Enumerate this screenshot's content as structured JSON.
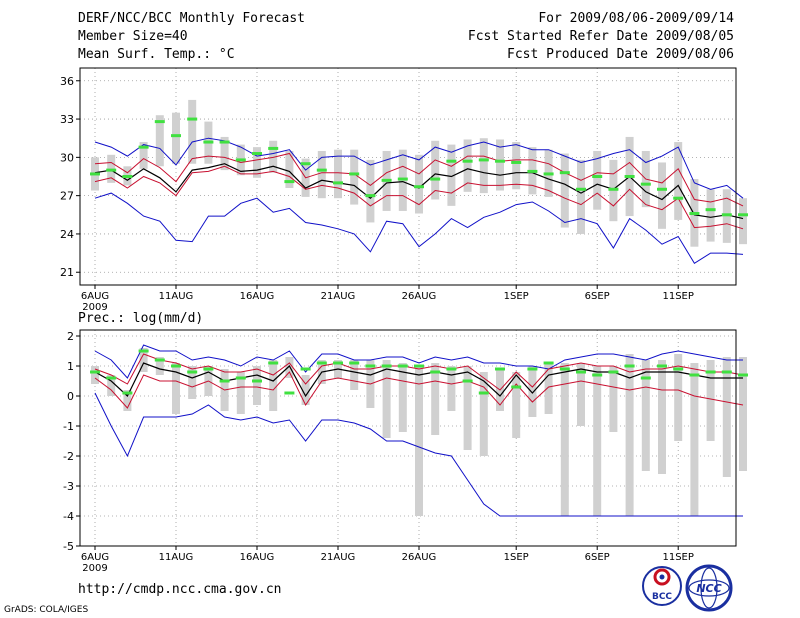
{
  "header": {
    "title": "DERF/NCC/BCC Monthly Forecast",
    "member_size": "Member Size=40",
    "variable": "Mean Surf. Temp.: °C",
    "fcst_period": "For 2009/08/06-2009/09/14",
    "fcst_started": "Fcst Started Refer Date 2009/08/05",
    "fcst_produced": "Fcst Produced Date 2009/08/06"
  },
  "footer": {
    "url": "http://cmdp.ncc.cma.gov.cn",
    "credit": "GrADS: COLA/IGES",
    "logo_left": "BCC",
    "logo_right": "NCC"
  },
  "colors": {
    "bar": "#d0d0d0",
    "median": "#40e040",
    "spread": "#1010c8",
    "quartile": "#c81030",
    "mean": "#000000"
  },
  "chart_data": [
    {
      "type": "line",
      "title": "Mean Surf. Temp.: °C",
      "ylim": [
        20,
        37
      ],
      "yticks": [
        21,
        24,
        27,
        30,
        33,
        36
      ],
      "xticks": [
        {
          "day": 0,
          "label": "6AUG",
          "sublabel": "2009"
        },
        {
          "day": 5,
          "label": "11AUG"
        },
        {
          "day": 10,
          "label": "16AUG"
        },
        {
          "day": 15,
          "label": "21AUG"
        },
        {
          "day": 20,
          "label": "26AUG"
        },
        {
          "day": 26,
          "label": "1SEP"
        },
        {
          "day": 31,
          "label": "6SEP"
        },
        {
          "day": 36,
          "label": "11SEP"
        }
      ],
      "series": [
        {
          "name": "ensemble-max",
          "values": [
            31.2,
            30.8,
            30.1,
            31.0,
            30.7,
            29.4,
            31.2,
            31.5,
            31.3,
            30.8,
            30.1,
            30.3,
            30.6,
            29.0,
            30.0,
            30.1,
            30.1,
            29.4,
            29.8,
            30.2,
            29.8,
            30.8,
            30.4,
            30.9,
            31.2,
            30.8,
            31.0,
            30.6,
            30.6,
            30.1,
            29.6,
            29.9,
            30.3,
            30.6,
            29.6,
            30.1,
            30.8,
            28.0,
            27.5,
            27.8,
            26.8
          ]
        },
        {
          "name": "upper-quartile",
          "values": [
            29.5,
            29.6,
            28.8,
            29.9,
            29.2,
            28.1,
            29.9,
            30.1,
            30.0,
            29.6,
            29.8,
            30.0,
            30.3,
            28.4,
            28.8,
            28.8,
            28.7,
            27.8,
            28.8,
            29.3,
            28.7,
            29.8,
            29.3,
            30.1,
            30.1,
            29.7,
            29.8,
            29.8,
            29.5,
            28.8,
            28.2,
            28.8,
            28.7,
            29.6,
            28.3,
            28.0,
            29.1,
            26.7,
            26.5,
            26.8,
            26.2
          ]
        },
        {
          "name": "mean",
          "values": [
            28.8,
            29.0,
            28.2,
            29.1,
            28.4,
            27.3,
            29.0,
            29.2,
            29.5,
            28.9,
            29.0,
            29.3,
            28.9,
            27.6,
            28.2,
            28.0,
            27.8,
            26.8,
            28.0,
            28.1,
            27.6,
            28.7,
            28.5,
            29.1,
            28.8,
            28.6,
            28.8,
            28.8,
            28.3,
            27.9,
            27.2,
            27.9,
            27.5,
            28.5,
            27.3,
            26.7,
            27.8,
            25.5,
            25.3,
            25.5,
            25.2
          ]
        },
        {
          "name": "lower-quartile",
          "values": [
            28.1,
            28.4,
            27.6,
            28.5,
            28.0,
            27.0,
            28.8,
            28.9,
            29.3,
            28.7,
            28.7,
            28.9,
            28.5,
            27.5,
            27.8,
            27.6,
            27.2,
            26.2,
            27.0,
            27.0,
            26.3,
            27.4,
            27.2,
            28.0,
            27.8,
            27.8,
            27.9,
            27.8,
            27.4,
            26.8,
            26.3,
            27.2,
            26.2,
            27.5,
            26.3,
            25.9,
            26.8,
            24.5,
            24.6,
            24.8,
            24.4
          ]
        },
        {
          "name": "ensemble-min",
          "values": [
            26.8,
            27.2,
            26.4,
            25.4,
            25.0,
            23.5,
            23.4,
            25.4,
            25.4,
            26.4,
            26.8,
            25.7,
            26.0,
            24.9,
            24.7,
            24.4,
            24.0,
            22.6,
            25.0,
            24.8,
            23.0,
            24.0,
            25.2,
            24.5,
            25.3,
            25.7,
            26.3,
            26.5,
            25.8,
            24.9,
            25.2,
            24.8,
            22.9,
            25.2,
            24.3,
            23.2,
            23.8,
            21.7,
            22.5,
            22.5,
            22.4
          ]
        },
        {
          "name": "median",
          "values": [
            28.7,
            29.0,
            28.5,
            30.8,
            32.8,
            31.7,
            33.0,
            31.2,
            31.2,
            29.8,
            30.3,
            30.7,
            28.1,
            29.5,
            29.0,
            28.0,
            28.7,
            27.0,
            28.2,
            28.3,
            27.7,
            28.3,
            29.7,
            29.7,
            29.8,
            29.7,
            29.6,
            28.9,
            28.7,
            28.8,
            27.5,
            28.5,
            27.5,
            28.5,
            27.9,
            27.5,
            26.8,
            25.6,
            25.9,
            25.5,
            25.5
          ]
        },
        {
          "name": "box-top",
          "values": [
            30.0,
            30.2,
            29.3,
            31.2,
            33.3,
            33.5,
            34.5,
            32.8,
            31.6,
            31.0,
            30.8,
            31.3,
            30.5,
            29.9,
            30.5,
            30.6,
            30.6,
            29.8,
            30.5,
            30.6,
            30.2,
            31.3,
            31.0,
            31.4,
            31.5,
            31.4,
            31.2,
            30.8,
            30.6,
            30.3,
            29.8,
            30.5,
            29.8,
            31.6,
            30.5,
            29.6,
            31.2,
            28.3,
            27.5,
            27.5,
            26.8
          ]
        },
        {
          "name": "box-bottom",
          "values": [
            27.4,
            28.0,
            27.8,
            29.1,
            29.3,
            29.5,
            29.5,
            29.5,
            29.0,
            28.6,
            28.4,
            28.8,
            27.6,
            26.9,
            26.8,
            26.8,
            26.3,
            24.9,
            25.8,
            25.8,
            25.6,
            26.7,
            26.2,
            27.3,
            27.2,
            27.4,
            27.5,
            27.1,
            26.9,
            24.5,
            24.0,
            25.9,
            25.0,
            25.4,
            26.1,
            24.4,
            25.1,
            23.0,
            23.4,
            23.3,
            23.2
          ]
        }
      ]
    },
    {
      "type": "line",
      "title": "Prec.: log(mm/d)",
      "ylim": [
        -5,
        2.2
      ],
      "yticks": [
        -5,
        -4,
        -3,
        -2,
        -1,
        0,
        1,
        2
      ],
      "xticks": [
        {
          "day": 0,
          "label": "6AUG",
          "sublabel": "2009"
        },
        {
          "day": 5,
          "label": "11AUG"
        },
        {
          "day": 10,
          "label": "16AUG"
        },
        {
          "day": 15,
          "label": "21AUG"
        },
        {
          "day": 20,
          "label": "26AUG"
        },
        {
          "day": 26,
          "label": "1SEP"
        },
        {
          "day": 31,
          "label": "6SEP"
        },
        {
          "day": 36,
          "label": "11SEP"
        }
      ],
      "series": [
        {
          "name": "ensemble-max",
          "values": [
            1.5,
            1.2,
            0.6,
            1.7,
            1.5,
            1.5,
            1.2,
            1.3,
            1.2,
            1.0,
            1.3,
            1.2,
            1.5,
            0.8,
            1.4,
            1.4,
            1.2,
            1.2,
            1.3,
            1.3,
            1.1,
            1.3,
            1.2,
            1.3,
            1.1,
            1.1,
            1.0,
            1.0,
            0.9,
            1.2,
            1.3,
            1.4,
            1.4,
            1.3,
            1.2,
            1.4,
            1.5,
            1.4,
            1.3,
            1.2,
            1.2
          ]
        },
        {
          "name": "upper-quartile",
          "values": [
            0.9,
            0.7,
            0.4,
            1.4,
            1.2,
            1.1,
            0.9,
            1.0,
            0.8,
            0.8,
            0.9,
            0.7,
            1.1,
            0.4,
            1.0,
            1.1,
            0.9,
            0.9,
            1.0,
            1.0,
            0.9,
            1.0,
            0.9,
            1.0,
            0.6,
            0.2,
            0.8,
            0.3,
            0.9,
            1.0,
            1.1,
            1.0,
            1.0,
            0.8,
            0.9,
            0.9,
            1.0,
            0.9,
            0.8,
            0.8,
            0.7
          ]
        },
        {
          "name": "mean",
          "values": [
            0.8,
            0.5,
            0.0,
            1.1,
            0.9,
            0.8,
            0.6,
            0.8,
            0.5,
            0.6,
            0.7,
            0.5,
            1.0,
            0.0,
            0.8,
            0.9,
            0.8,
            0.7,
            0.9,
            0.8,
            0.7,
            0.8,
            0.7,
            0.8,
            0.5,
            0.0,
            0.7,
            0.1,
            0.7,
            0.8,
            0.9,
            0.8,
            0.8,
            0.6,
            0.8,
            0.8,
            0.8,
            0.7,
            0.6,
            0.6,
            0.6
          ]
        },
        {
          "name": "lower-quartile",
          "values": [
            0.6,
            0.2,
            -0.4,
            0.7,
            0.5,
            0.5,
            0.3,
            0.5,
            0.2,
            0.3,
            0.3,
            0.2,
            0.8,
            -0.3,
            0.5,
            0.6,
            0.5,
            0.4,
            0.6,
            0.5,
            0.4,
            0.5,
            0.4,
            0.5,
            0.3,
            -0.3,
            0.4,
            -0.2,
            0.3,
            0.4,
            0.5,
            0.4,
            0.3,
            0.2,
            0.3,
            0.2,
            0.2,
            0.0,
            -0.1,
            -0.2,
            -0.3
          ]
        },
        {
          "name": "ensemble-min",
          "values": [
            0.1,
            -1.0,
            -2.0,
            -0.7,
            -0.7,
            -0.7,
            -0.6,
            -0.3,
            -0.7,
            -0.8,
            -0.7,
            -0.9,
            -0.8,
            -1.5,
            -0.8,
            -0.8,
            -0.9,
            -1.1,
            -1.5,
            -1.5,
            -1.7,
            -1.9,
            -2.0,
            -2.8,
            -3.6,
            -4.0,
            -4.0,
            -4.0,
            -4.0,
            -4.0,
            -4.0,
            -4.0,
            -4.0,
            -4.0,
            -4.0,
            -4.0,
            -4.0,
            -4.0,
            -4.0,
            -4.0,
            -4.0
          ]
        },
        {
          "name": "median",
          "values": [
            0.8,
            0.6,
            0.1,
            1.5,
            1.2,
            1.0,
            0.8,
            0.9,
            0.5,
            0.6,
            0.5,
            1.1,
            0.1,
            0.9,
            1.1,
            1.1,
            1.1,
            1.0,
            1.0,
            1.0,
            1.0,
            0.8,
            0.9,
            0.5,
            0.1,
            0.9,
            0.3,
            0.9,
            1.1,
            0.9,
            0.8,
            0.7,
            0.8,
            1.0,
            0.6,
            1.0,
            0.9,
            0.7,
            0.8,
            0.8,
            0.7
          ]
        },
        {
          "name": "box-top",
          "values": [
            1.0,
            0.7,
            0.2,
            1.6,
            1.3,
            1.1,
            1.0,
            1.0,
            0.9,
            0.8,
            1.0,
            1.2,
            1.3,
            0.7,
            1.2,
            1.2,
            1.2,
            1.2,
            1.2,
            1.1,
            1.0,
            1.1,
            1.0,
            1.0,
            0.8,
            0.9,
            0.8,
            1.0,
            1.1,
            1.1,
            1.1,
            1.0,
            1.0,
            1.4,
            1.2,
            1.2,
            1.4,
            1.1,
            1.2,
            1.3,
            1.3
          ]
        },
        {
          "name": "box-bottom",
          "values": [
            0.4,
            0.0,
            -0.5,
            0.8,
            0.7,
            -0.6,
            -0.1,
            0.0,
            -0.5,
            -0.6,
            -0.3,
            -0.5,
            0.6,
            -0.3,
            0.4,
            0.6,
            0.2,
            -0.4,
            -1.4,
            -1.2,
            -4.0,
            -1.3,
            -0.5,
            -1.8,
            -2.0,
            -0.5,
            -1.4,
            -0.7,
            -0.6,
            -4.0,
            -1.0,
            -4.0,
            -1.2,
            -4.0,
            -2.5,
            -2.6,
            -1.5,
            -4.0,
            -1.5,
            -2.7,
            -2.5
          ]
        }
      ]
    }
  ]
}
